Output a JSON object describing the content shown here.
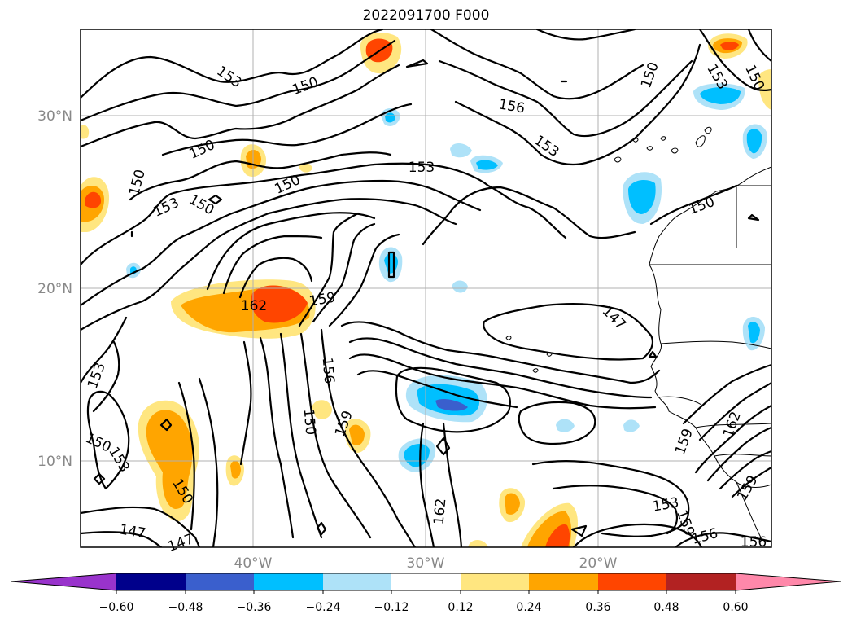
{
  "title": "2022091700 F000",
  "lat_labels": [
    "30°N",
    "20°N",
    "10°N"
  ],
  "lon_labels": [
    "40°W",
    "30°W",
    "20°W"
  ],
  "colorbar": {
    "ticks": [
      "−0.60",
      "−0.48",
      "−0.36",
      "−0.24",
      "−0.12",
      "0.12",
      "0.24",
      "0.36",
      "0.48",
      "0.60"
    ],
    "colors": [
      "#9933cc",
      "#00008b",
      "#3a5fcd",
      "#00bfff",
      "#aee2f8",
      "#ffffff",
      "#ffe680",
      "#ffa500",
      "#ff4500",
      "#b22222",
      "#ff88aa"
    ]
  },
  "contour_labels": [
    {
      "text": "153",
      "r": 35
    },
    {
      "text": "150",
      "r": -20
    },
    {
      "text": "150",
      "r": -25
    },
    {
      "text": "150",
      "r": -75
    },
    {
      "text": "153",
      "r": -25
    },
    {
      "text": "150",
      "r": 30
    },
    {
      "text": "150",
      "r": -25
    },
    {
      "text": "153",
      "r": 0
    },
    {
      "text": "156",
      "r": 10
    },
    {
      "text": "153",
      "r": 35
    },
    {
      "text": "150",
      "r": -70
    },
    {
      "text": "153",
      "r": 60
    },
    {
      "text": "150",
      "r": 65
    },
    {
      "text": "150",
      "r": -20
    },
    {
      "text": "162",
      "r": 0
    },
    {
      "text": "159",
      "r": -10
    },
    {
      "text": "147",
      "r": 45
    },
    {
      "text": "156",
      "r": 85
    },
    {
      "text": "150",
      "r": 85
    },
    {
      "text": "159",
      "r": -70
    },
    {
      "text": "153",
      "r": -70
    },
    {
      "text": "150",
      "r": 25
    },
    {
      "text": "153",
      "r": 60
    },
    {
      "text": "150",
      "r": 60
    },
    {
      "text": "147",
      "r": 10
    },
    {
      "text": "147",
      "r": -20
    },
    {
      "text": "162",
      "r": -85
    },
    {
      "text": "153",
      "r": -10
    },
    {
      "text": "159",
      "r": 70
    },
    {
      "text": "156",
      "r": -15
    },
    {
      "text": "156",
      "r": 0
    },
    {
      "text": "162",
      "r": -70
    },
    {
      "text": "159",
      "r": -70
    },
    {
      "text": "159",
      "r": -60
    }
  ]
}
